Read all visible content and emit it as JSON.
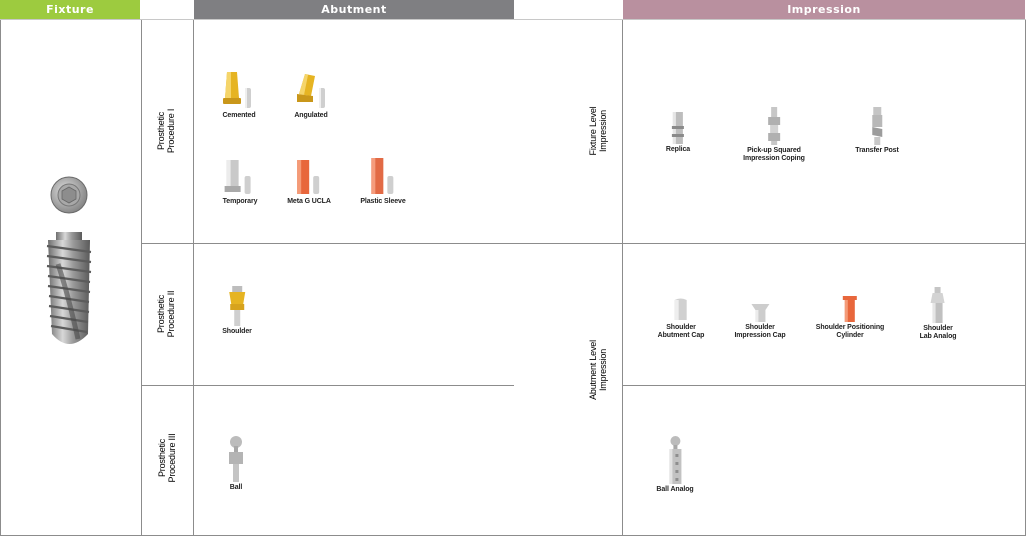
{
  "headers": {
    "fixture": "Fixture",
    "abutment": "Abutment",
    "impression": "Impression"
  },
  "colors": {
    "fixture_header": "#9dcb3f",
    "abutment_header": "#7f7f82",
    "impression_header": "#b9909f",
    "gold": "#e6b422",
    "titanium": "#c9c9c9",
    "orange": "#e8673c",
    "grid_line": "#8c8c8c"
  },
  "procedures": {
    "p1": [
      "Prosthetic",
      "Procedure I"
    ],
    "p2": [
      "Prosthetic",
      "Procedure II"
    ],
    "p3": [
      "Prosthetic",
      "Procedure III"
    ]
  },
  "levels": {
    "fixture_level": [
      "Fixture Level",
      "Impression"
    ],
    "abutment_level": [
      "Abutment Level",
      "Impression"
    ]
  },
  "abutments": {
    "cemented": "Cemented",
    "angulated": "Angulated",
    "temporary": "Temporary",
    "meta_g_ucla": "Meta G UCLA",
    "plastic_sleeve": "Plastic Sleeve",
    "shoulder": "Shoulder",
    "ball": "Ball"
  },
  "impressions": {
    "replica": [
      "Replica"
    ],
    "pickup": [
      "Pick-up Squared",
      "Impression Coping"
    ],
    "transfer_post": [
      "Transfer Post"
    ],
    "shoulder_abutment_cap": [
      "Shoulder",
      "Abutment Cap"
    ],
    "shoulder_impression_cap": [
      "Shoulder",
      "Impression Cap"
    ],
    "shoulder_positioning_cylinder": [
      "Shoulder Positioning",
      "Cylinder"
    ],
    "shoulder_lab_analog": [
      "Shoulder",
      "Lab Analog"
    ],
    "ball_analog": [
      "Ball Analog"
    ]
  }
}
